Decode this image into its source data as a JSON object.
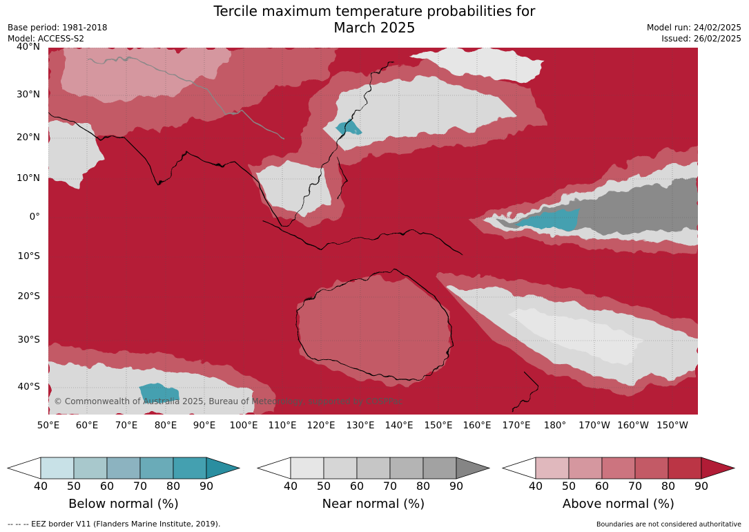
{
  "title_line1": "Tercile maximum temperature probabilities for",
  "title_line2": "March 2025",
  "meta_left": [
    "Base period: 1981-2018",
    "Model: ACCESS-S2"
  ],
  "meta_right": [
    "Model run: 24/02/2025",
    "Issued: 26/02/2025"
  ],
  "lat_labels": [
    "40°N",
    "30°N",
    "20°N",
    "10°N",
    "0°",
    "10°S",
    "20°S",
    "30°S",
    "40°S"
  ],
  "lon_labels": [
    "50°E",
    "60°E",
    "70°E",
    "80°E",
    "90°E",
    "100°E",
    "110°E",
    "120°E",
    "130°E",
    "140°E",
    "150°E",
    "160°E",
    "170°E",
    "180°",
    "170°W",
    "160°W",
    "150°W"
  ],
  "copyright": "© Commonwealth of Australia 2025, Bureau of Meteorology, supported by COSPPac",
  "colorbars": [
    {
      "title": "Below normal (%)",
      "ticks": [
        "40",
        "50",
        "60",
        "70",
        "80",
        "90"
      ],
      "colors": [
        "#c8e1e7",
        "#a8c8cc",
        "#8cb3c0",
        "#6aabb8",
        "#44a0b0",
        "#2a8ea0"
      ]
    },
    {
      "title": "Near normal (%)",
      "ticks": [
        "40",
        "50",
        "60",
        "70",
        "80",
        "90"
      ],
      "colors": [
        "#e6e6e6",
        "#d6d6d6",
        "#c6c6c6",
        "#b4b4b4",
        "#a2a2a2",
        "#858585"
      ]
    },
    {
      "title": "Above normal (%)",
      "ticks": [
        "40",
        "50",
        "60",
        "70",
        "80",
        "90"
      ],
      "colors": [
        "#e0b8bd",
        "#d5979f",
        "#cc747f",
        "#c35a66",
        "#bb3545",
        "#b11c36"
      ]
    }
  ],
  "footer_left": "--  --  -- EEZ border V11 (Flanders Marine Institute, 2019).",
  "footer_right": "Boundaries are not considered authoritative",
  "map_colors": {
    "ocean_above": "#b51d37",
    "above_mid": "#c35a66",
    "above_light": "#d5979f",
    "near": "#d9d9d9",
    "near_dark": "#8a8a8a",
    "below": "#44a0b0"
  }
}
